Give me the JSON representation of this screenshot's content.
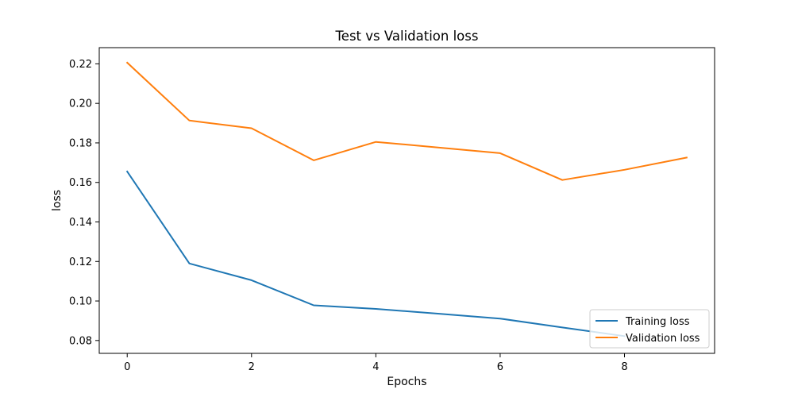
{
  "chart_data": {
    "type": "line",
    "title": "Test vs Validation loss",
    "xlabel": "Epochs",
    "ylabel": "loss",
    "x": [
      0,
      1,
      2,
      3,
      4,
      5,
      6,
      7,
      8,
      9
    ],
    "xlim": [
      -0.45,
      9.45
    ],
    "ylim": [
      0.0735,
      0.2282
    ],
    "xticks": [
      "0",
      "2",
      "4",
      "6",
      "8"
    ],
    "yticks": [
      "0.08",
      "0.10",
      "0.12",
      "0.14",
      "0.16",
      "0.18",
      "0.20",
      "0.22"
    ],
    "series": [
      {
        "name": "Training loss",
        "color": "#1f77b4",
        "values": [
          0.1655,
          0.119,
          0.1105,
          0.0978,
          0.096,
          0.0936,
          0.0911,
          0.0866,
          0.0822,
          null
        ]
      },
      {
        "name": "Validation loss",
        "color": "#ff7f0e",
        "values": [
          0.2206,
          0.1913,
          0.1874,
          0.1712,
          0.1805,
          0.1777,
          0.1748,
          0.1612,
          0.1664,
          0.1726
        ]
      }
    ],
    "legend": "lower-right",
    "grid": false
  }
}
